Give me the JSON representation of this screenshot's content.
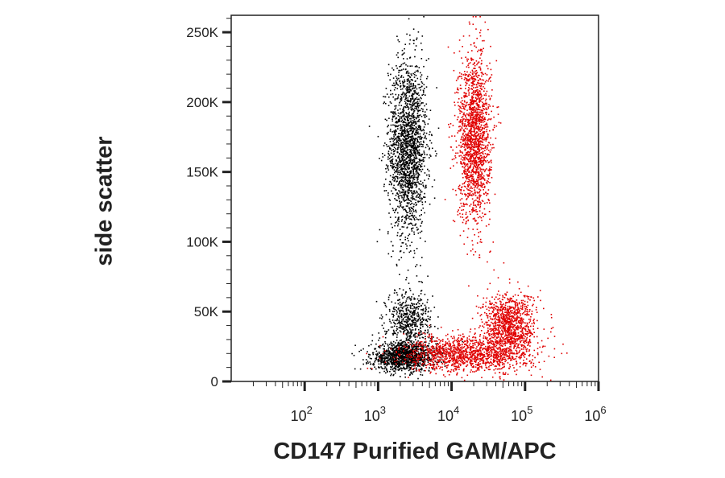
{
  "chart_data": {
    "type": "scatter",
    "title": "",
    "xlabel": "CD147 Purified GAM/APC",
    "ylabel": "side scatter",
    "x_scale": "log",
    "xlim": [
      10,
      1000000
    ],
    "ylim": [
      0,
      262144
    ],
    "x_ticks": [
      {
        "base": "10",
        "exp": "2",
        "value": 100
      },
      {
        "base": "10",
        "exp": "3",
        "value": 1000
      },
      {
        "base": "10",
        "exp": "4",
        "value": 10000
      },
      {
        "base": "10",
        "exp": "5",
        "value": 100000
      },
      {
        "base": "10",
        "exp": "6",
        "value": 1000000
      }
    ],
    "y_ticks": [
      {
        "label": "0",
        "value": 0
      },
      {
        "label": "50K",
        "value": 50000
      },
      {
        "label": "100K",
        "value": 100000
      },
      {
        "label": "150K",
        "value": 150000
      },
      {
        "label": "200K",
        "value": 200000
      },
      {
        "label": "250K",
        "value": 250000
      }
    ],
    "grid": false,
    "legend": "none",
    "series": [
      {
        "color": "#000000",
        "clusters": [
          {
            "x_center": 2500,
            "x_spread_decades": 0.13,
            "y_center": 168000,
            "y_spread": 32000,
            "points": 1900
          },
          {
            "x_center": 2200,
            "x_spread_decades": 0.22,
            "y_center": 18000,
            "y_spread": 5000,
            "points": 1200
          },
          {
            "x_center": 2600,
            "x_spread_decades": 0.15,
            "y_center": 44000,
            "y_spread": 11000,
            "points": 550
          }
        ]
      },
      {
        "color": "#e00000",
        "clusters": [
          {
            "x_center": 20000,
            "x_spread_decades": 0.11,
            "y_center": 175000,
            "y_spread": 30000,
            "points": 1700
          },
          {
            "x_center": 60000,
            "x_spread_decades": 0.18,
            "y_center": 40000,
            "y_spread": 12000,
            "points": 1100
          },
          {
            "x_center": 16000,
            "x_spread_decades": 0.42,
            "y_center": 20000,
            "y_spread": 6500,
            "points": 1300
          }
        ]
      }
    ]
  }
}
